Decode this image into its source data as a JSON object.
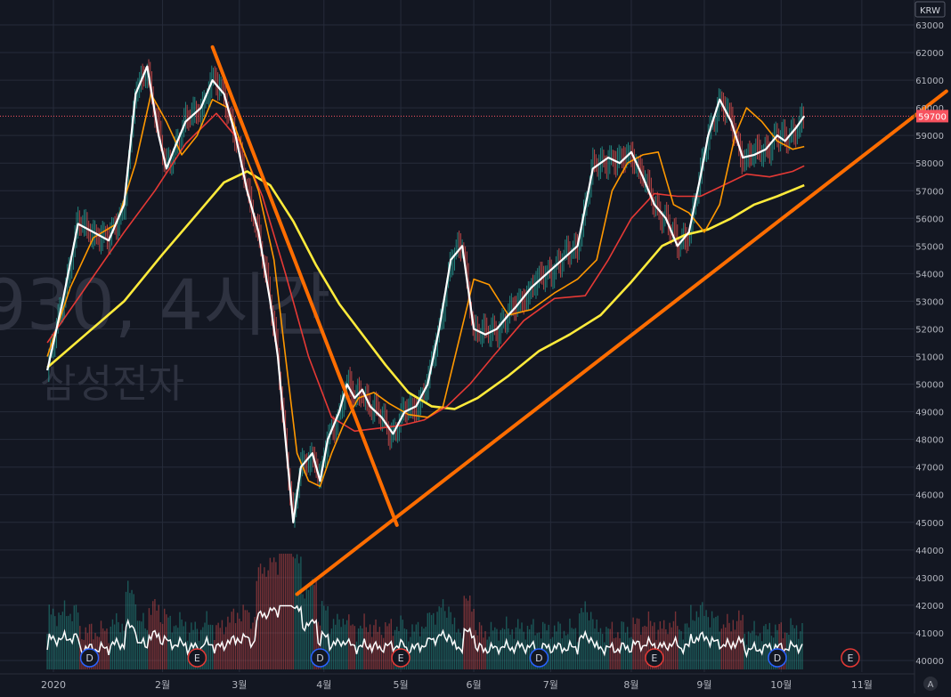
{
  "watermark": {
    "line1": "930, 4시간",
    "line2": "삼성전자"
  },
  "currency_badge": "KRW",
  "last_price_label": "59700",
  "corner_label": "A",
  "colors": {
    "background": "#131722",
    "grid": "#262b3a",
    "axis_text": "#b2b5be",
    "candle_up": "#26a69a",
    "candle_down": "#ef5350",
    "price_line": "#ffffff",
    "ma_short": "#ff9800",
    "ma_mid": "#e53935",
    "ma_long": "#ffeb3b",
    "trendline": "#ff6d00",
    "price_badge": "#f7525f",
    "dividend_marker": "#2962ff",
    "earnings_marker": "#e53935"
  },
  "chart_data": {
    "type": "line",
    "title": "",
    "ylim": [
      39800,
      63500
    ],
    "y_ticks": [
      40000,
      41000,
      42000,
      43000,
      44000,
      45000,
      46000,
      47000,
      48000,
      49000,
      50000,
      51000,
      52000,
      53000,
      54000,
      55000,
      56000,
      57000,
      58000,
      59000,
      60000,
      61000,
      62000,
      63000
    ],
    "x_ticks": [
      {
        "label": "2020",
        "t": 0.08
      },
      {
        "label": "2월",
        "t": 1.5
      },
      {
        "label": "3월",
        "t": 2.5
      },
      {
        "label": "4월",
        "t": 3.6
      },
      {
        "label": "5월",
        "t": 4.6
      },
      {
        "label": "6월",
        "t": 5.55
      },
      {
        "label": "7월",
        "t": 6.55
      },
      {
        "label": "8월",
        "t": 7.6
      },
      {
        "label": "9월",
        "t": 8.55
      },
      {
        "label": "10월",
        "t": 9.55
      },
      {
        "label": "11월",
        "t": 10.6
      }
    ],
    "last_price": 59700,
    "series": [
      {
        "key": "price",
        "x": [
          0.0,
          0.2,
          0.4,
          0.6,
          0.8,
          1.0,
          1.15,
          1.3,
          1.45,
          1.55,
          1.65,
          1.8,
          2.0,
          2.15,
          2.3,
          2.45,
          2.6,
          2.75,
          2.9,
          3.0,
          3.1,
          3.2,
          3.3,
          3.45,
          3.55,
          3.65,
          3.8,
          3.9,
          4.0,
          4.1,
          4.2,
          4.35,
          4.5,
          4.65,
          4.8,
          4.95,
          5.1,
          5.25,
          5.4,
          5.55,
          5.7,
          5.85,
          6.0,
          6.1,
          6.3,
          6.5,
          6.7,
          6.9,
          7.1,
          7.3,
          7.45,
          7.6,
          7.75,
          7.9,
          8.05,
          8.2,
          8.35,
          8.5,
          8.6,
          8.75,
          8.9,
          9.05,
          9.2,
          9.35,
          9.5,
          9.6,
          9.75,
          9.85
        ],
        "values": [
          50500,
          53000,
          55800,
          55500,
          55200,
          56500,
          60500,
          61500,
          59000,
          57800,
          58500,
          59500,
          60000,
          61000,
          60500,
          59000,
          57000,
          55500,
          53000,
          51000,
          48000,
          45000,
          47000,
          47500,
          46500,
          48000,
          49000,
          50000,
          49500,
          49800,
          49200,
          48800,
          48200,
          49000,
          49200,
          50000,
          52000,
          54500,
          55000,
          52000,
          51800,
          52000,
          52500,
          52800,
          53500,
          54000,
          54500,
          55000,
          57800,
          58200,
          58000,
          58400,
          57500,
          56500,
          56000,
          55000,
          55500,
          57500,
          59000,
          60300,
          59500,
          58200,
          58300,
          58500,
          59000,
          58800,
          59300,
          59700
        ]
      },
      {
        "key": "ma_short",
        "x": [
          0.0,
          0.3,
          0.6,
          0.9,
          1.15,
          1.35,
          1.55,
          1.75,
          1.95,
          2.15,
          2.35,
          2.55,
          2.75,
          2.95,
          3.1,
          3.25,
          3.4,
          3.55,
          3.7,
          3.85,
          4.05,
          4.25,
          4.45,
          4.7,
          4.95,
          5.15,
          5.35,
          5.55,
          5.75,
          6.0,
          6.3,
          6.6,
          6.9,
          7.15,
          7.35,
          7.55,
          7.75,
          7.95,
          8.15,
          8.35,
          8.55,
          8.75,
          8.95,
          9.1,
          9.3,
          9.5,
          9.7,
          9.85
        ],
        "values": [
          51000,
          53500,
          55300,
          55800,
          58000,
          60500,
          59500,
          58300,
          59000,
          60300,
          60000,
          58500,
          57000,
          54500,
          51000,
          47500,
          46500,
          46300,
          47500,
          48500,
          49500,
          49700,
          49300,
          48900,
          48800,
          49200,
          51500,
          53800,
          53600,
          52500,
          52700,
          53300,
          53800,
          54500,
          57000,
          58000,
          58300,
          58400,
          56500,
          56200,
          55500,
          56500,
          59000,
          60000,
          59500,
          58800,
          58500,
          58600
        ]
      },
      {
        "key": "ma_mid",
        "x": [
          0.0,
          0.5,
          1.0,
          1.4,
          1.8,
          2.2,
          2.5,
          2.8,
          3.1,
          3.4,
          3.7,
          4.0,
          4.3,
          4.6,
          4.9,
          5.2,
          5.5,
          5.8,
          6.2,
          6.6,
          7.0,
          7.3,
          7.6,
          7.9,
          8.2,
          8.5,
          8.8,
          9.1,
          9.4,
          9.7,
          9.85
        ],
        "values": [
          51500,
          53500,
          55500,
          57000,
          58700,
          59800,
          58800,
          56800,
          54000,
          51000,
          48800,
          48300,
          48400,
          48500,
          48700,
          49200,
          50000,
          51000,
          52300,
          53100,
          53200,
          54500,
          56000,
          56900,
          56800,
          56800,
          57200,
          57600,
          57500,
          57700,
          57900
        ]
      },
      {
        "key": "ma_long",
        "x": [
          0.0,
          0.5,
          1.0,
          1.5,
          1.9,
          2.3,
          2.6,
          2.9,
          3.2,
          3.5,
          3.8,
          4.1,
          4.4,
          4.7,
          5.0,
          5.3,
          5.6,
          6.0,
          6.4,
          6.8,
          7.2,
          7.6,
          8.0,
          8.3,
          8.6,
          8.9,
          9.2,
          9.5,
          9.85
        ],
        "values": [
          50600,
          51800,
          53000,
          54700,
          56000,
          57300,
          57700,
          57200,
          55900,
          54300,
          52900,
          51800,
          50700,
          49700,
          49200,
          49100,
          49500,
          50300,
          51200,
          51800,
          52500,
          53700,
          55000,
          55400,
          55600,
          56000,
          56500,
          56800,
          57200
        ]
      }
    ],
    "trendlines": [
      {
        "from": {
          "t": 2.15,
          "v": 62200
        },
        "to": {
          "t": 4.55,
          "v": 44900
        }
      },
      {
        "from": {
          "t": 3.25,
          "v": 42400
        },
        "to": {
          "t": 11.7,
          "v": 60600
        }
      }
    ],
    "event_markers": [
      {
        "label": "D",
        "t": 0.55,
        "kind": "dividend"
      },
      {
        "label": "E",
        "t": 1.95,
        "kind": "earnings"
      },
      {
        "label": "D",
        "t": 3.55,
        "kind": "dividend"
      },
      {
        "label": "E",
        "t": 4.6,
        "kind": "earnings"
      },
      {
        "label": "D",
        "t": 6.4,
        "kind": "dividend"
      },
      {
        "label": "E",
        "t": 7.9,
        "kind": "earnings"
      },
      {
        "label": "D",
        "t": 9.5,
        "kind": "dividend"
      },
      {
        "label": "E",
        "t": 10.45,
        "kind": "earnings"
      }
    ]
  }
}
